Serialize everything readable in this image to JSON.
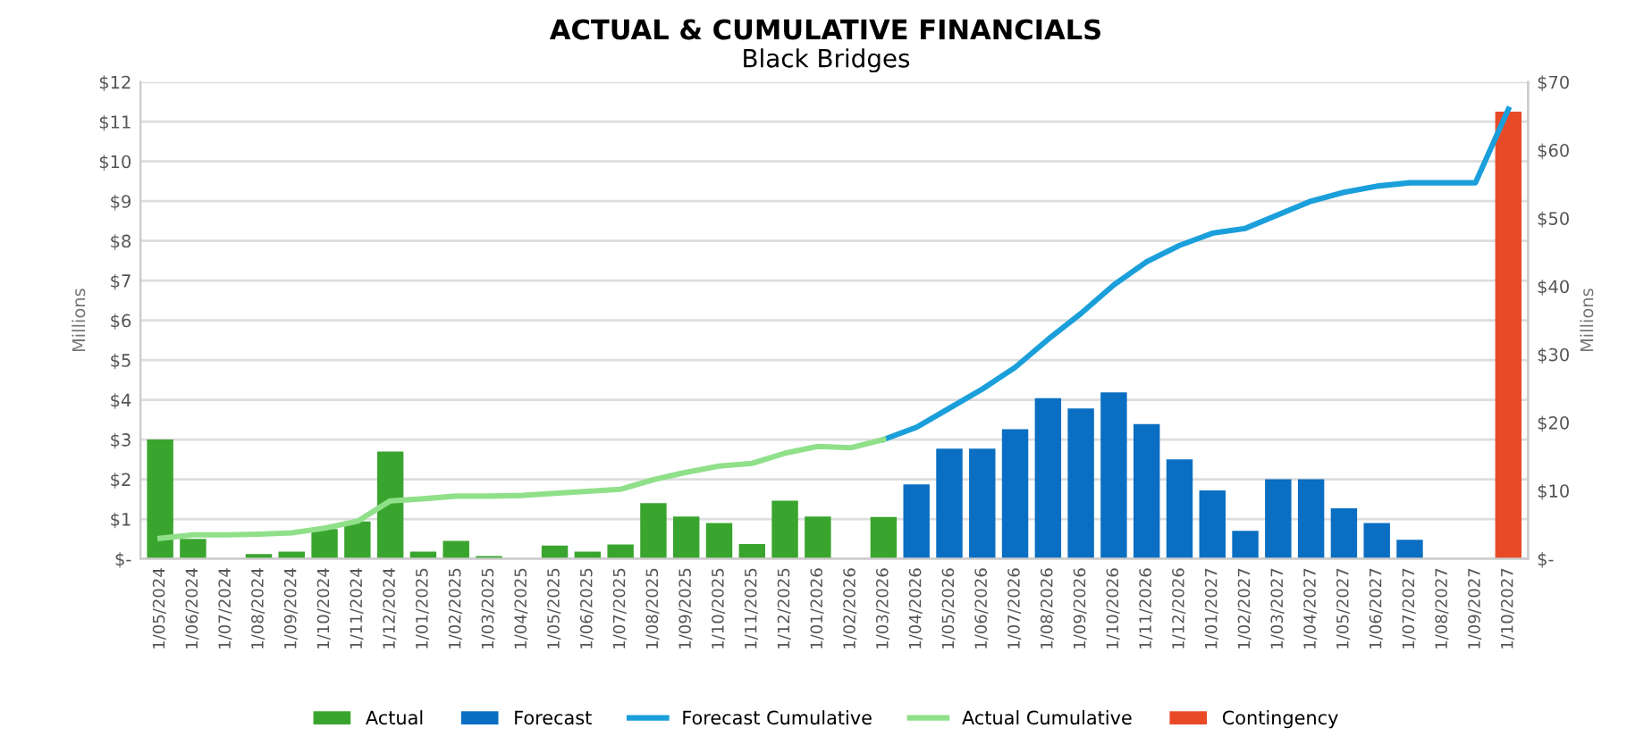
{
  "chart_data": {
    "type": "bar",
    "title": "ACTUAL & CUMULATIVE FINANCIALS",
    "subtitle": "Black Bridges",
    "ylabel": "Millions",
    "y2label": "Millions",
    "categories": [
      "1/05/2024",
      "1/06/2024",
      "1/07/2024",
      "1/08/2024",
      "1/09/2024",
      "1/10/2024",
      "1/11/2024",
      "1/12/2024",
      "1/01/2025",
      "1/02/2025",
      "1/03/2025",
      "1/04/2025",
      "1/05/2025",
      "1/06/2025",
      "1/07/2025",
      "1/08/2025",
      "1/09/2025",
      "1/10/2025",
      "1/11/2025",
      "1/12/2025",
      "1/01/2026",
      "1/02/2026",
      "1/03/2026",
      "1/04/2026",
      "1/05/2026",
      "1/06/2026",
      "1/07/2026",
      "1/08/2026",
      "1/09/2026",
      "1/10/2026",
      "1/11/2026",
      "1/12/2026",
      "1/01/2027",
      "1/02/2027",
      "1/03/2027",
      "1/04/2027",
      "1/05/2027",
      "1/06/2027",
      "1/07/2027",
      "1/08/2027",
      "1/09/2027",
      "1/10/2027"
    ],
    "series": [
      {
        "name": "Actual",
        "color": "#3aa52e",
        "values": [
          3.0,
          0.5,
          null,
          0.12,
          0.18,
          0.75,
          0.94,
          2.7,
          0.18,
          0.45,
          0.07,
          null,
          0.33,
          0.18,
          0.36,
          1.4,
          1.06,
          0.9,
          0.37,
          1.46,
          1.06,
          null,
          1.05,
          null,
          null,
          null,
          null,
          null,
          null,
          null,
          null,
          null,
          null,
          null,
          null,
          null,
          null,
          null,
          null,
          null,
          null,
          null
        ]
      },
      {
        "name": "Forecast",
        "color": "#0a6fc2",
        "values": [
          null,
          null,
          null,
          null,
          null,
          null,
          null,
          null,
          null,
          null,
          null,
          null,
          null,
          null,
          null,
          null,
          null,
          null,
          null,
          null,
          null,
          null,
          null,
          1.87,
          2.77,
          2.77,
          3.26,
          4.04,
          3.78,
          4.19,
          3.39,
          2.5,
          1.72,
          0.7,
          2.0,
          2.0,
          1.27,
          0.9,
          0.48,
          null,
          null,
          null
        ]
      },
      {
        "name": "Forecast Cumulative",
        "type": "line",
        "axis": "y2",
        "color": "#1a9fdb",
        "values": [
          null,
          null,
          null,
          null,
          null,
          null,
          null,
          null,
          null,
          null,
          null,
          null,
          null,
          null,
          null,
          null,
          null,
          null,
          null,
          null,
          null,
          null,
          17.5,
          19.3,
          22.1,
          24.9,
          28.1,
          32.2,
          36.0,
          40.2,
          43.6,
          46.0,
          47.8,
          48.5,
          50.5,
          52.5,
          53.8,
          54.7,
          55.2,
          55.2,
          55.2,
          66.0
        ]
      },
      {
        "name": "Actual Cumulative",
        "type": "line",
        "axis": "y2",
        "color": "#90e08a",
        "values": [
          3.0,
          3.5,
          3.5,
          3.6,
          3.8,
          4.5,
          5.5,
          8.5,
          8.8,
          9.2,
          9.2,
          9.3,
          9.6,
          9.9,
          10.2,
          11.6,
          12.7,
          13.6,
          14.0,
          15.5,
          16.5,
          16.3,
          17.5,
          null,
          null,
          null,
          null,
          null,
          null,
          null,
          null,
          null,
          null,
          null,
          null,
          null,
          null,
          null,
          null,
          null,
          null,
          null
        ]
      },
      {
        "name": "Contingency",
        "color": "#e84a27",
        "values": [
          null,
          null,
          null,
          null,
          null,
          null,
          null,
          null,
          null,
          null,
          null,
          null,
          null,
          null,
          null,
          null,
          null,
          null,
          null,
          null,
          null,
          null,
          null,
          null,
          null,
          null,
          null,
          null,
          null,
          null,
          null,
          null,
          null,
          null,
          null,
          null,
          null,
          null,
          null,
          null,
          null,
          11.25
        ]
      }
    ],
    "ylim": [
      0,
      12
    ],
    "yticks": [
      {
        "value": 0,
        "label": "$-"
      },
      {
        "value": 1,
        "label": "$1"
      },
      {
        "value": 2,
        "label": "$2"
      },
      {
        "value": 3,
        "label": "$3"
      },
      {
        "value": 4,
        "label": "$4"
      },
      {
        "value": 5,
        "label": "$5"
      },
      {
        "value": 6,
        "label": "$6"
      },
      {
        "value": 7,
        "label": "$7"
      },
      {
        "value": 8,
        "label": "$8"
      },
      {
        "value": 9,
        "label": "$9"
      },
      {
        "value": 10,
        "label": "$10"
      },
      {
        "value": 11,
        "label": "$11"
      },
      {
        "value": 12,
        "label": "$12"
      }
    ],
    "y2lim": [
      0,
      70
    ],
    "y2ticks": [
      {
        "value": 0,
        "label": "$-"
      },
      {
        "value": 10,
        "label": "$10"
      },
      {
        "value": 20,
        "label": "$20"
      },
      {
        "value": 30,
        "label": "$30"
      },
      {
        "value": 40,
        "label": "$40"
      },
      {
        "value": 50,
        "label": "$50"
      },
      {
        "value": 60,
        "label": "$60"
      },
      {
        "value": 70,
        "label": "$70"
      }
    ],
    "grid": "y",
    "legend": "bottom"
  }
}
